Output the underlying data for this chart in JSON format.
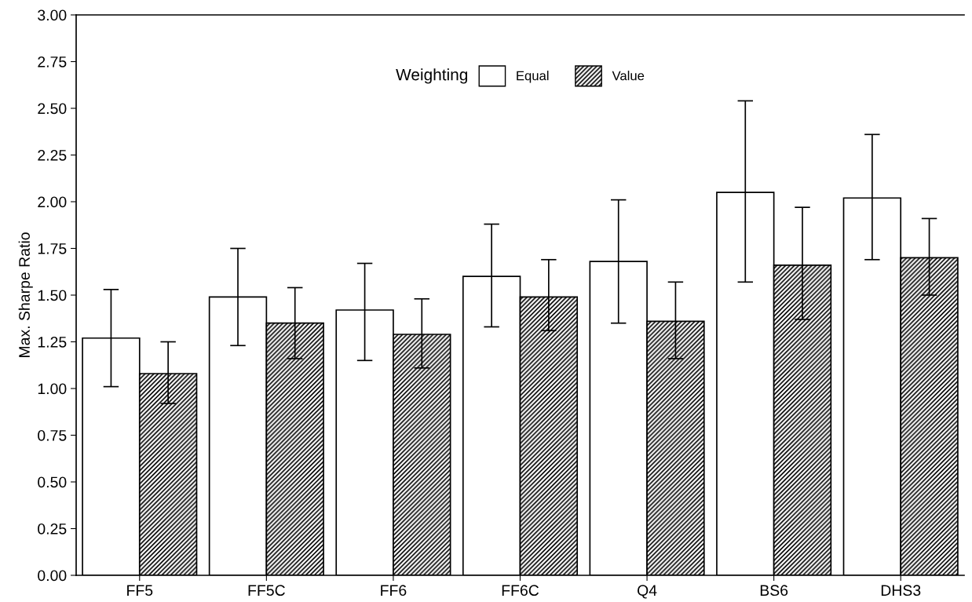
{
  "chart_data": {
    "type": "bar",
    "ylabel": "Max. Sharpe Ratio",
    "legend_title": "Weighting",
    "legend": "top",
    "grid": false,
    "categories": [
      "FF5",
      "FF5C",
      "FF6",
      "FF6C",
      "Q4",
      "BS6",
      "DHS3"
    ],
    "series": [
      {
        "name": "Equal",
        "color": "#ffffff",
        "values": [
          1.27,
          1.49,
          1.42,
          1.6,
          1.68,
          2.05,
          2.02
        ],
        "errors": [
          [
            1.01,
            1.53
          ],
          [
            1.23,
            1.75
          ],
          [
            1.15,
            1.67
          ],
          [
            1.33,
            1.88
          ],
          [
            1.35,
            2.01
          ],
          [
            1.57,
            2.54
          ],
          [
            1.69,
            2.36
          ]
        ]
      },
      {
        "name": "Value",
        "color": "#000000",
        "values": [
          1.08,
          1.35,
          1.29,
          1.49,
          1.36,
          1.66,
          1.7
        ],
        "errors": [
          [
            0.92,
            1.25
          ],
          [
            1.16,
            1.54
          ],
          [
            1.11,
            1.48
          ],
          [
            1.31,
            1.69
          ],
          [
            1.16,
            1.57
          ],
          [
            1.37,
            1.97
          ],
          [
            1.5,
            1.91
          ]
        ]
      }
    ],
    "ylim": [
      0,
      3
    ],
    "yticks": [
      {
        "value": 0,
        "label": "0.00"
      },
      {
        "value": 0.25,
        "label": "0.25"
      },
      {
        "value": 0.5,
        "label": "0.50"
      },
      {
        "value": 0.75,
        "label": "0.75"
      },
      {
        "value": 1,
        "label": "1.00"
      },
      {
        "value": 1.25,
        "label": "1.25"
      },
      {
        "value": 1.5,
        "label": "1.50"
      },
      {
        "value": 1.75,
        "label": "1.75"
      },
      {
        "value": 2,
        "label": "2.00"
      },
      {
        "value": 2.25,
        "label": "2.25"
      },
      {
        "value": 2.5,
        "label": "2.50"
      },
      {
        "value": 2.75,
        "label": "2.75"
      },
      {
        "value": 3,
        "label": "3.00"
      }
    ]
  }
}
